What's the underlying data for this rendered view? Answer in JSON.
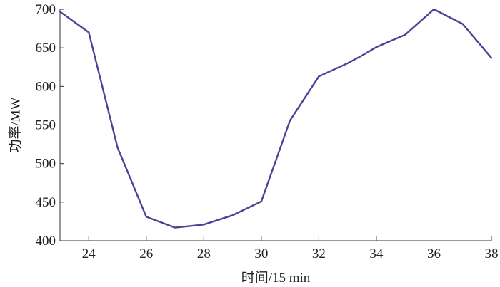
{
  "chart_data": {
    "type": "line",
    "title": "",
    "xlabel": "时间/15 min",
    "ylabel": "功率/MW",
    "xlim": [
      23,
      38
    ],
    "ylim": [
      400,
      700
    ],
    "x_ticks": [
      24,
      26,
      28,
      30,
      32,
      34,
      36,
      38
    ],
    "y_ticks": [
      400,
      450,
      500,
      550,
      600,
      650,
      700
    ],
    "grid": false,
    "series": [
      {
        "color": "#4a4496",
        "x": [
          23,
          24,
          25,
          26,
          27,
          28,
          29,
          30,
          31,
          32,
          33,
          33.5,
          34,
          35,
          36,
          37,
          38
        ],
        "y": [
          697,
          670,
          521,
          431,
          417,
          421,
          433,
          451,
          556,
          613,
          630,
          640,
          651,
          667,
          700,
          681,
          637
        ]
      }
    ]
  }
}
